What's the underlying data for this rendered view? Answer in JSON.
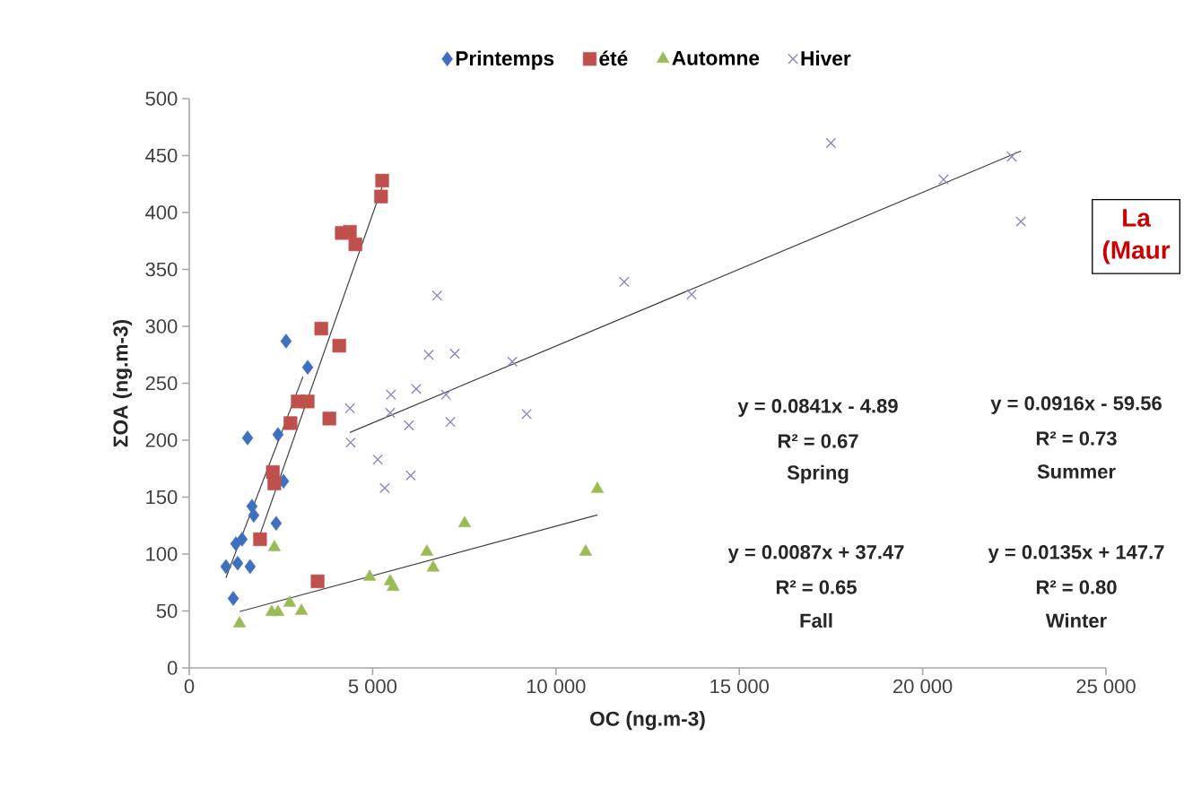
{
  "chart_data": {
    "type": "scatter",
    "xlabel": "OC (ng.m-3)",
    "ylabel": "ΣOA (ng.m-3)",
    "xlim": [
      0,
      25000
    ],
    "ylim": [
      0,
      500
    ],
    "xticks": [
      0,
      {
        "value": 5000,
        "label": "5 000"
      },
      {
        "value": 10000,
        "label": "10 000"
      },
      {
        "value": 15000,
        "label": "15 000"
      },
      {
        "value": 20000,
        "label": "20 000"
      },
      {
        "value": 25000,
        "label": "25 000"
      }
    ],
    "yticks": [
      0,
      50,
      100,
      150,
      200,
      250,
      300,
      350,
      400,
      450,
      500
    ],
    "legend": "top",
    "series": [
      {
        "name": "Printemps",
        "color": "#3f6fbf",
        "marker": "diamond",
        "x": [
          2640,
          3230,
          1590,
          2420,
          2570,
          1710,
          1760,
          2370,
          1440,
          1270,
          1000,
          1320,
          1660,
          1200
        ],
        "values": [
          287,
          264,
          202,
          205,
          164,
          142,
          134,
          127,
          113,
          109,
          89,
          92,
          89,
          61
        ]
      },
      {
        "name": "été",
        "color": "#c0504d",
        "marker": "square",
        "x": [
          5260,
          5230,
          4160,
          4380,
          4530,
          3600,
          4090,
          2960,
          3230,
          2760,
          3820,
          2280,
          2320,
          1930,
          3500
        ],
        "values": [
          428,
          414,
          382,
          383,
          372,
          298,
          283,
          234,
          234,
          215,
          219,
          172,
          162,
          113,
          76
        ]
      },
      {
        "name": "Automne",
        "color": "#9bbb59",
        "marker": "triangle",
        "x": [
          1370,
          2320,
          2250,
          2420,
          2740,
          3060,
          4920,
          5480,
          5560,
          6480,
          6650,
          7510,
          10810,
          11130
        ],
        "values": [
          39,
          106,
          49,
          49,
          57,
          50,
          80,
          76,
          71,
          102,
          88,
          127,
          102,
          157
        ]
      },
      {
        "name": "Hiver",
        "color": "#8a82c4",
        "marker": "cross",
        "x": [
          6760,
          11860,
          13700,
          6530,
          7240,
          8810,
          4380,
          5500,
          6190,
          7000,
          5480,
          5990,
          7120,
          9200,
          4400,
          5140,
          6040,
          5330,
          17500,
          20570,
          22430,
          22680
        ],
        "values": [
          327,
          339,
          328,
          275,
          276,
          269,
          228,
          240,
          245,
          240,
          224,
          213,
          216,
          223,
          198,
          183,
          169,
          158,
          461,
          429,
          449,
          392
        ]
      },
      {
        "type": "line",
        "color": "#404040",
        "marker": "none",
        "line_style": "solid",
        "x": [
          1000,
          3100
        ],
        "values": [
          79.2,
          255.8
        ]
      },
      {
        "type": "line",
        "color": "#404040",
        "marker": "none",
        "line_style": "solid",
        "x": [
          1930,
          5260
        ],
        "values": [
          117.2,
          422.3
        ]
      },
      {
        "type": "line",
        "color": "#404040",
        "marker": "none",
        "line_style": "solid",
        "x": [
          1370,
          11130
        ],
        "values": [
          49.4,
          134.3
        ]
      },
      {
        "type": "line",
        "color": "#404040",
        "marker": "none",
        "line_style": "solid",
        "x": [
          4380,
          22680
        ],
        "values": [
          206.8,
          453.9
        ]
      }
    ],
    "annotations": [
      "y = 0.0841x - 4.89",
      "R² = 0.67",
      "Spring",
      "y = 0.0916x - 59.56",
      "R² = 0.73",
      "Summer",
      "y = 0.0087x + 37.47",
      "R² = 0.65",
      "Fall",
      "y = 0.0135x + 147.7",
      "R² = 0.80",
      "Winter",
      "La",
      "(Maur"
    ]
  }
}
